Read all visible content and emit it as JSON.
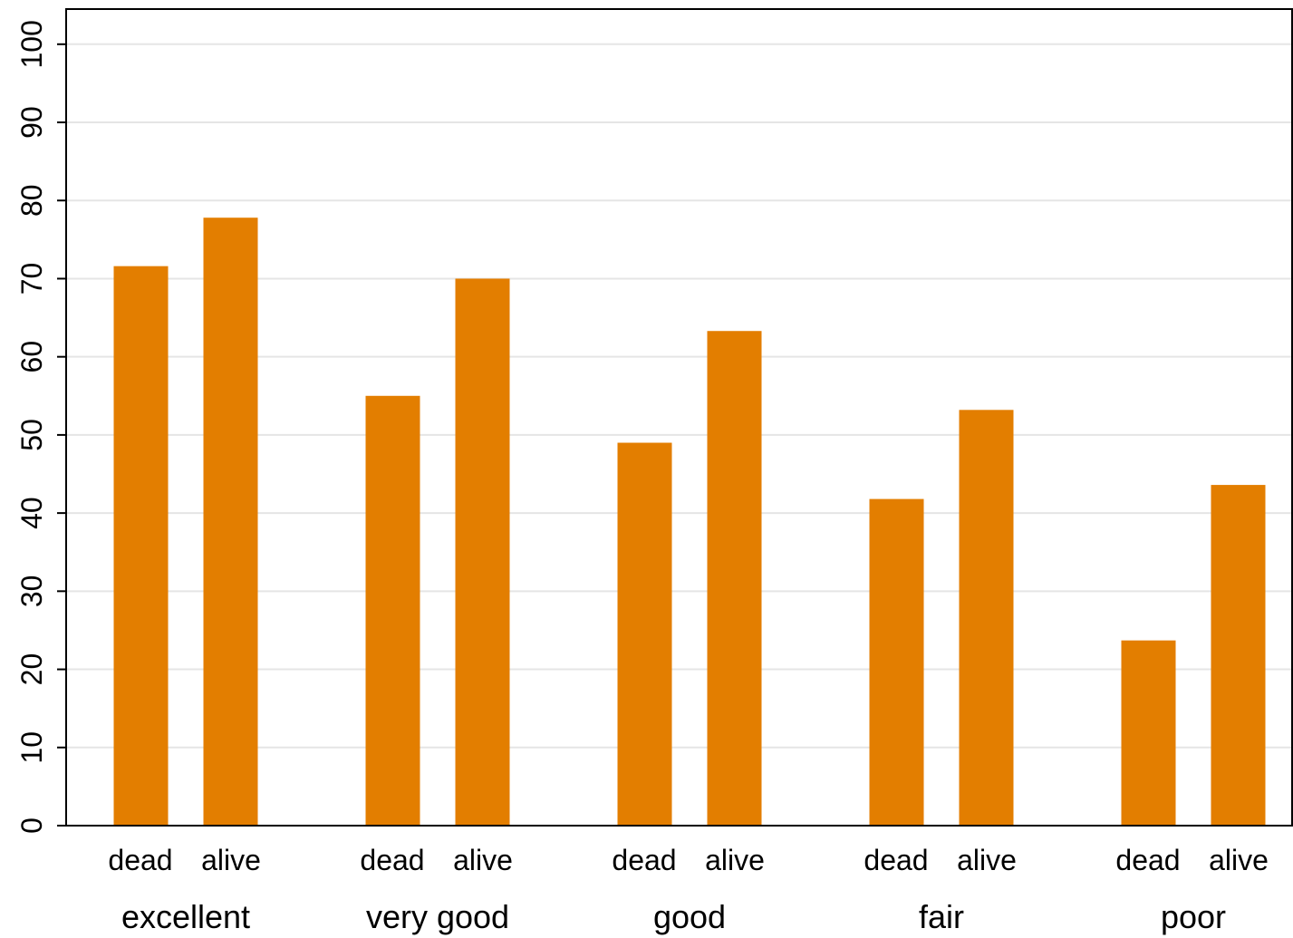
{
  "chart_data": {
    "type": "bar",
    "groups": [
      "excellent",
      "very good",
      "good",
      "fair",
      "poor"
    ],
    "subcategories": [
      "dead",
      "alive"
    ],
    "series": [
      {
        "values": [
          71.6,
          55.0,
          49.0,
          41.8,
          23.7
        ]
      },
      {
        "values": [
          77.8,
          70.0,
          63.3,
          53.2,
          43.6
        ]
      }
    ],
    "data_matrix": [
      [
        71.6,
        77.8
      ],
      [
        55.0,
        70.0
      ],
      [
        49.0,
        63.3
      ],
      [
        41.8,
        53.2
      ],
      [
        23.7,
        43.6
      ]
    ],
    "yticks": [
      "0",
      "10",
      "20",
      "30",
      "40",
      "50",
      "60",
      "70",
      "80",
      "90",
      "100"
    ],
    "ylim": [
      0,
      104.5
    ],
    "grid": true,
    "bar_color": "#E37E00",
    "grid_color": "#E5E5E5",
    "axis_color": "#000000",
    "title": "",
    "xlabel": "",
    "ylabel": ""
  }
}
